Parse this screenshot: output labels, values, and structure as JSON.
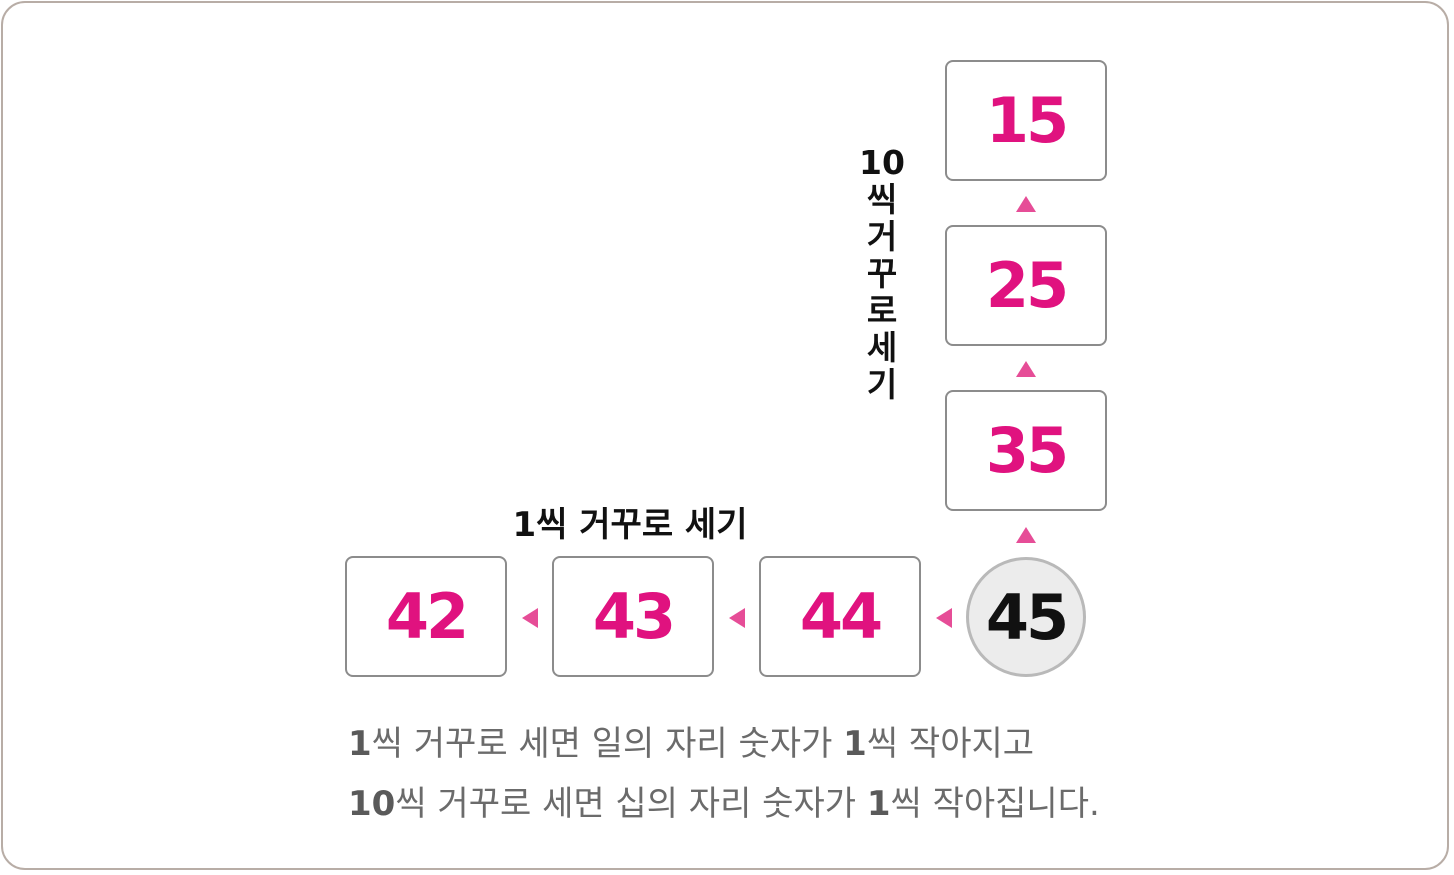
{
  "vertical_label": "10\n씩\n거\n꾸\n로\n세\n기",
  "horizontal_label": "1씩 거꾸로 세기",
  "start_number": "45",
  "vertical_boxes": [
    "35",
    "25",
    "15"
  ],
  "horizontal_boxes": [
    "44",
    "43",
    "42"
  ],
  "caption": {
    "line1_num1": "1",
    "line1_text1": "씩 거꾸로 세면 일의 자리 숫자가 ",
    "line1_num2": "1",
    "line1_text2": "씩 작아지고",
    "line2_num1": "10",
    "line2_text1": "씩 거꾸로 세면 십의 자리 숫자가 ",
    "line2_num2": "1",
    "line2_text2": "씩 작아집니다."
  },
  "colors": {
    "number": "#e0127f",
    "arrow": "#e64d97",
    "start_circle_fill": "#ececec",
    "frame_border": "#b8ada6"
  }
}
